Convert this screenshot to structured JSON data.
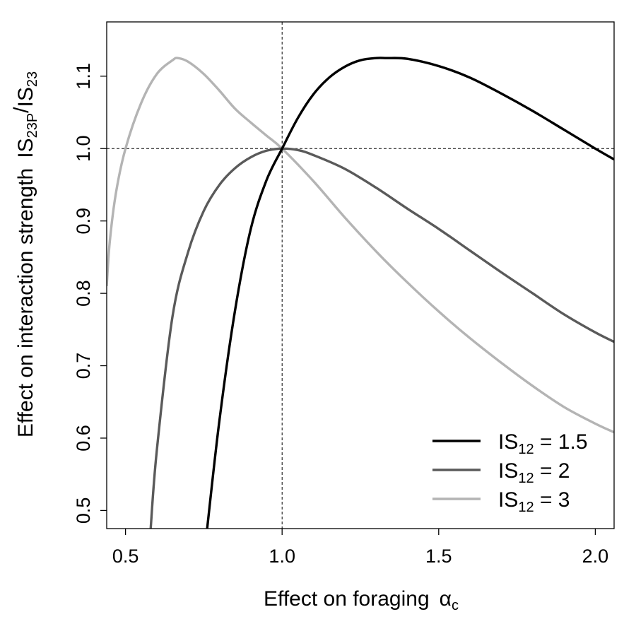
{
  "chart_data": {
    "type": "line",
    "xlabel": "Effect on foraging",
    "xlabel_symbol": "α",
    "xlabel_symbol_sub": "c",
    "ylabel": "Effect on interaction strength",
    "ylabel_num": "IS",
    "ylabel_num_sub": "23P",
    "ylabel_slash": "/",
    "ylabel_den": "IS",
    "ylabel_den_sub": "23",
    "xlim": [
      0.44,
      2.06
    ],
    "ylim": [
      0.475,
      1.175
    ],
    "x_ticks": [
      0.5,
      1.0,
      1.5,
      2.0
    ],
    "x_tick_labels": [
      "0.5",
      "1.0",
      "1.5",
      "2.0"
    ],
    "y_ticks": [
      0.5,
      0.6,
      0.7,
      0.8,
      0.9,
      1.0,
      1.1
    ],
    "y_tick_labels": [
      "0.5",
      "0.6",
      "0.7",
      "0.8",
      "0.9",
      "1.0",
      "1.1"
    ],
    "reference_lines": {
      "x": 1.0,
      "y": 1.0,
      "style": "dashed"
    },
    "grid": false,
    "legend_position": "bottom-right",
    "series": [
      {
        "label_main": "IS",
        "label_sub": "12",
        "label_rest": " = 1.5",
        "color": "#000000",
        "x": [
          0.76,
          0.8,
          0.85,
          0.9,
          0.95,
          1.0,
          1.05,
          1.1,
          1.15,
          1.2,
          1.25,
          1.3,
          1.333,
          1.4,
          1.5,
          1.6,
          1.7,
          1.8,
          1.9,
          2.0,
          2.06
        ],
        "y": [
          0.472,
          0.625,
          0.777,
          0.889,
          0.956,
          1.0,
          1.042,
          1.075,
          1.098,
          1.113,
          1.122,
          1.125,
          1.125,
          1.124,
          1.114,
          1.098,
          1.076,
          1.052,
          1.026,
          1.0,
          0.985
        ]
      },
      {
        "label_main": "IS",
        "label_sub": "12",
        "label_rest": " = 2",
        "color": "#5a5a5a",
        "x": [
          0.58,
          0.6,
          0.65,
          0.7,
          0.75,
          0.8,
          0.85,
          0.9,
          0.95,
          1.0,
          1.05,
          1.1,
          1.2,
          1.3,
          1.4,
          1.5,
          1.6,
          1.7,
          1.8,
          1.9,
          2.0,
          2.06
        ],
        "y": [
          0.472,
          0.583,
          0.768,
          0.857,
          0.914,
          0.95,
          0.973,
          0.988,
          0.997,
          1.0,
          0.998,
          0.991,
          0.972,
          0.946,
          0.917,
          0.889,
          0.859,
          0.829,
          0.8,
          0.771,
          0.746,
          0.733
        ]
      },
      {
        "label_main": "IS",
        "label_sub": "12",
        "label_rest": " = 3",
        "color": "#b4b4b4",
        "x": [
          0.44,
          0.45,
          0.47,
          0.5,
          0.55,
          0.6,
          0.65,
          0.667,
          0.7,
          0.75,
          0.8,
          0.85,
          0.9,
          0.95,
          1.0,
          1.1,
          1.2,
          1.3,
          1.4,
          1.5,
          1.6,
          1.7,
          1.8,
          1.9,
          2.0,
          2.06
        ],
        "y": [
          0.81,
          0.872,
          0.94,
          1.0,
          1.063,
          1.103,
          1.122,
          1.125,
          1.12,
          1.103,
          1.08,
          1.055,
          1.036,
          1.018,
          1.0,
          0.955,
          0.905,
          0.858,
          0.815,
          0.775,
          0.738,
          0.704,
          0.672,
          0.643,
          0.62,
          0.608
        ]
      }
    ]
  }
}
